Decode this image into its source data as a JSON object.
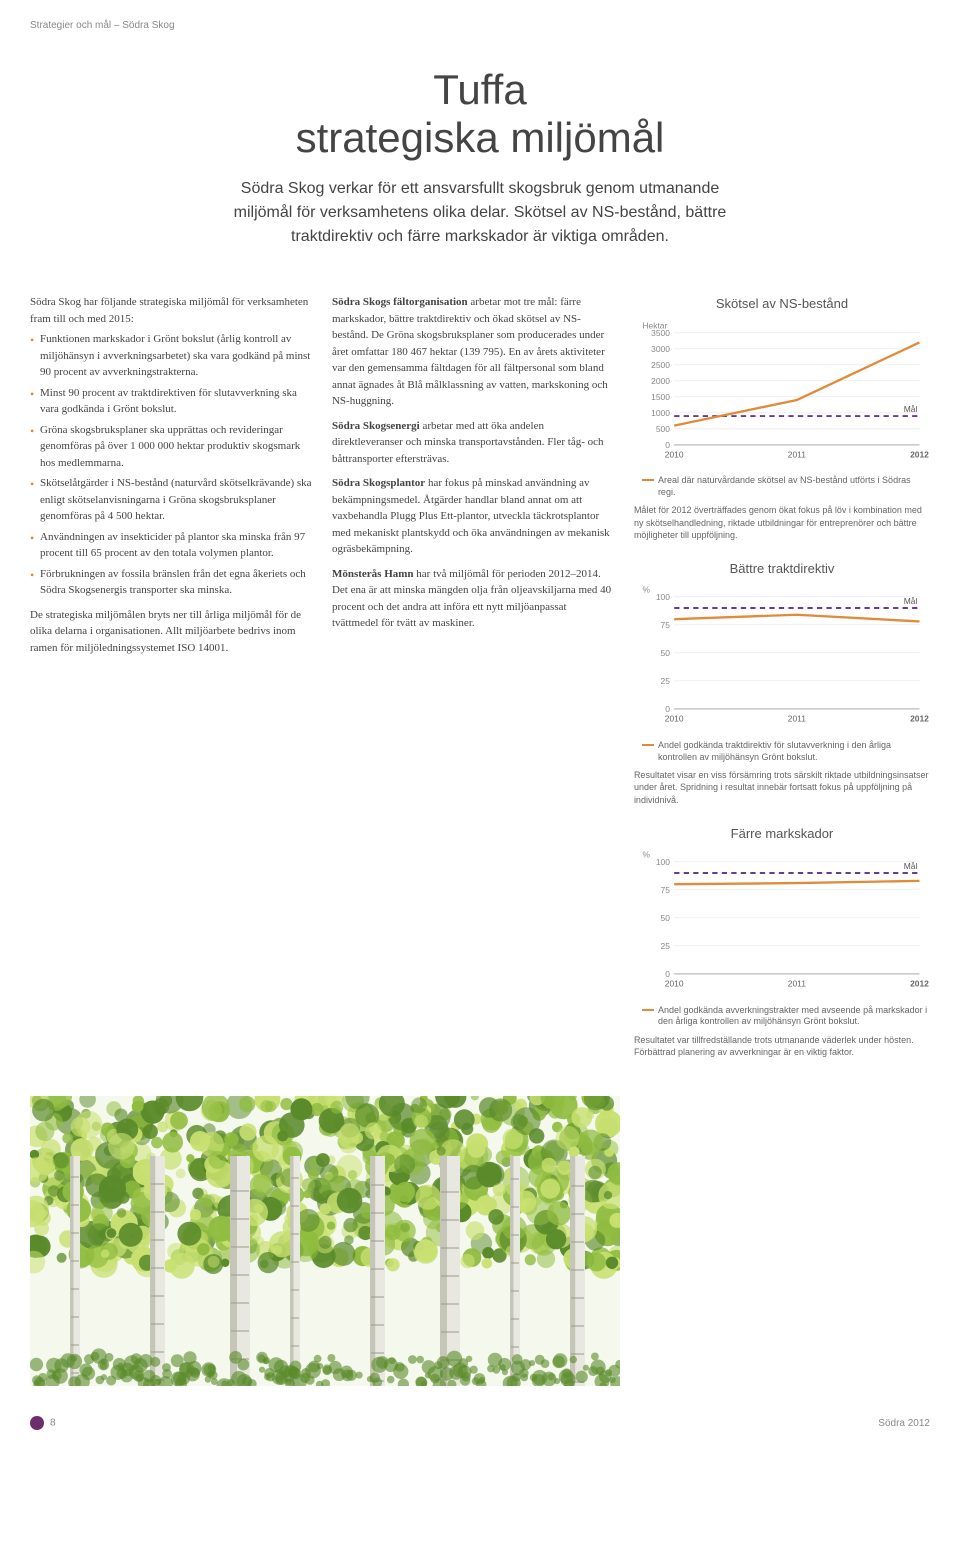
{
  "header": "Strategier och mål – Södra Skog",
  "title_line1": "Tuffa",
  "title_line2": "strategiska miljömål",
  "intro": "Södra Skog verkar för ett ansvarsfullt skogsbruk genom utmanande miljömål för verksamhetens olika delar. Skötsel av NS-bestånd, bättre traktdirektiv och färre markskador är viktiga områden.",
  "col1": {
    "lead": "Södra Skog har följande strategiska miljömål för verksamheten fram till och med 2015:",
    "bullets": [
      "Funktionen markskador i Grönt bokslut (årlig kontroll av miljöhänsyn i avverkningsarbetet) ska vara godkänd på minst 90 procent av avverkningstrakterna.",
      "Minst 90 procent av traktdirektiven för slutavverkning ska vara godkända i Grönt bokslut.",
      "Gröna skogsbruksplaner ska upprättas och revideringar genomföras på över 1 000 000 hektar produktiv skogsmark hos medlemmarna.",
      "Skötselåtgärder i NS-bestånd (naturvård skötselkrävande) ska enligt skötselanvisningarna i Gröna skogsbruksplaner genomföras på 4 500 hektar.",
      "Användningen av insekticider på plantor ska minska från 97 procent till 65 procent av den totala volymen plantor.",
      "Förbrukningen av fossila bränslen från det egna åkeriets och Södra Skogsenergis transporter ska minska."
    ],
    "after": "De strategiska miljömålen bryts ner till årliga miljömål för de olika delarna i organisationen. Allt miljöarbete bedrivs inom ramen för miljöledningssystemet ISO 14001."
  },
  "col2": {
    "p1_head": "Södra Skogs fältorganisation",
    "p1": " arbetar mot tre mål: färre markskador, bättre traktdirektiv och ökad skötsel av NS-bestånd. De Gröna skogsbruksplaner som producerades under året omfattar 180 467 hektar (139 795). En av årets aktiviteter var den gemensamma fältdagen för all fältpersonal som bland annat ägnades åt Blå målklassning av vatten, markskoning och NS-huggning.",
    "p2_head": "Södra Skogsenergi",
    "p2": " arbetar med att öka andelen direktleveranser och minska transportavstånden. Fler tåg- och båttransporter eftersträvas.",
    "p3_head": "Södra Skogsplantor",
    "p3": " har fokus på minskad användning av bekämpningsmedel. Åtgärder handlar bland annat om att vaxbehandla Plugg Plus Ett-plantor, utveckla täckrotsplantor med mekaniskt plantskydd och öka användningen av mekanisk ogräsbekämpning.",
    "p4_head": "Mönsterås Hamn",
    "p4": " har två miljömål för perioden 2012–2014. Det ena är att minska mängden olja från oljeavskiljarna med 40 procent och det andra att införa ett nytt miljöanpassat tvättmedel för tvätt av maskiner."
  },
  "chart1": {
    "title": "Skötsel av NS-bestånd",
    "y_unit": "Hektar",
    "y_ticks": [
      "0",
      "500",
      "1000",
      "1500",
      "2000",
      "2500",
      "3000",
      "3500"
    ],
    "y_max": 3500,
    "x_labels": [
      "2010",
      "2011",
      "2012"
    ],
    "series_color": "#e08a3a",
    "target_color": "#6b3a8f",
    "background": "#ffffff",
    "grid_color": "#dddddd",
    "target_label": "Mål",
    "series_values": [
      600,
      1400,
      3200
    ],
    "target_values": [
      900,
      900,
      900
    ],
    "legend": "Areal där naturvårdande skötsel av NS-bestånd utförts i Södras regi.",
    "caption": "Målet för 2012 överträffades genom ökat fokus på löv i kombination med ny skötselhandledning, riktade utbildningar för entreprenörer och bättre möjligheter till uppföljning."
  },
  "chart2": {
    "title": "Bättre traktdirektiv",
    "y_unit": "%",
    "y_ticks": [
      "0",
      "25",
      "50",
      "75",
      "100"
    ],
    "y_max": 100,
    "x_labels": [
      "2010",
      "2011",
      "2012"
    ],
    "series_color": "#e08a3a",
    "target_color": "#6b3a8f",
    "target_label": "Mål",
    "series_values": [
      80,
      84,
      78
    ],
    "target_values": [
      90,
      90,
      90
    ],
    "legend": "Andel godkända traktdirektiv för slutavverkning i den årliga kontrollen av miljöhänsyn Grönt bokslut.",
    "caption": "Resultatet visar en viss försämring trots särskilt riktade utbildningsinsatser under året. Spridning i resultat innebär fortsatt fokus på uppföljning på individnivå."
  },
  "chart3": {
    "title": "Färre markskador",
    "y_unit": "%",
    "y_ticks": [
      "0",
      "25",
      "50",
      "75",
      "100"
    ],
    "y_max": 100,
    "x_labels": [
      "2010",
      "2011",
      "2012"
    ],
    "series_color": "#e08a3a",
    "target_color": "#6b3a8f",
    "target_label": "Mål",
    "series_values": [
      80,
      81,
      83
    ],
    "target_values": [
      90,
      90,
      90
    ],
    "legend": "Andel godkända avverkningstrakter med avseende på markskador i den årliga kontrollen av miljöhänsyn Grönt bokslut.",
    "caption": "Resultatet var tillfredställande trots utmanande väderlek under hösten. Förbättrad planering av avverkningar är en viktig faktor."
  },
  "footer": {
    "page": "8",
    "right": "Södra 2012"
  },
  "forest": {
    "trunk_color": "#e8e8e0",
    "trunk_shadow": "#c5c5b8",
    "leaf_light": "#c8e070",
    "leaf_mid": "#8fbc3f",
    "leaf_dark": "#5a8a2a",
    "sky": "#f5f8ed"
  }
}
